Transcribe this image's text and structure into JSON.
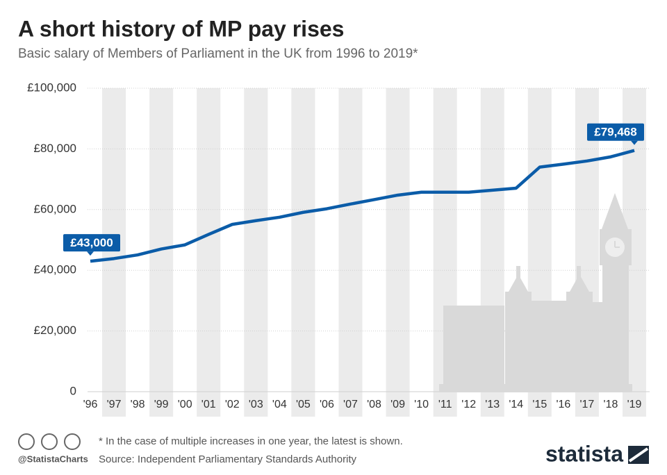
{
  "chart_data": {
    "type": "line",
    "title": "A short history of MP pay rises",
    "subtitle": "Basic salary of Members of Parliament in the UK from 1996 to 2019*",
    "categories": [
      "'96",
      "'97",
      "'98",
      "'99",
      "'00",
      "'01",
      "'02",
      "'03",
      "'04",
      "'05",
      "'06",
      "'07",
      "'08",
      "'09",
      "'10",
      "'11",
      "'12",
      "'13",
      "'14",
      "'15",
      "'16",
      "'17",
      "'18",
      "'19"
    ],
    "series": [
      {
        "name": "Basic salary",
        "color": "#0b5ca8",
        "values": [
          43000,
          43860,
          45066,
          47008,
          48371,
          51822,
          55118,
          56358,
          57485,
          59095,
          60277,
          61820,
          63291,
          64766,
          65738,
          65738,
          65738,
          66396,
          67060,
          74000,
          74962,
          76011,
          77379,
          79468
        ],
        "value_labels": [
          "£43,000",
          null,
          null,
          null,
          null,
          null,
          null,
          null,
          null,
          null,
          null,
          null,
          null,
          null,
          null,
          null,
          null,
          null,
          null,
          null,
          null,
          null,
          null,
          "£79,468"
        ]
      }
    ],
    "ylim": [
      0,
      100000
    ],
    "yticks": [
      0,
      {
        "value": 20000,
        "label": "£20,000"
      },
      {
        "value": 40000,
        "label": "£40,000"
      },
      {
        "value": 60000,
        "label": "£60,000"
      },
      {
        "value": 80000,
        "label": "£80,000"
      },
      {
        "value": 100000,
        "label": "£100,000"
      }
    ],
    "grid": true,
    "footnote": "* In the case of multiple increases in one year, the latest is shown.",
    "source": "Source: Independent Parliamentary Standards Authority",
    "handle": "@StatistaCharts",
    "brand": "statista"
  }
}
